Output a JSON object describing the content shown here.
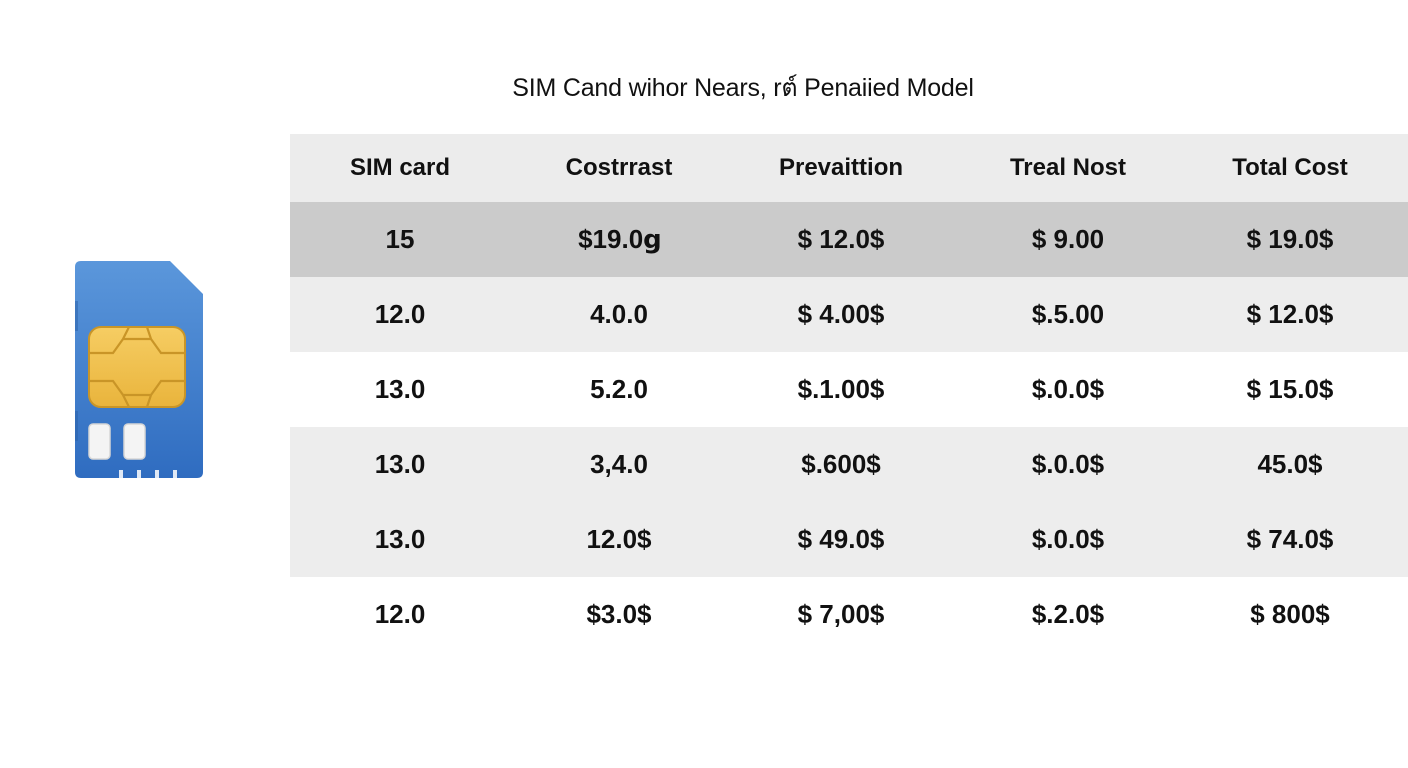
{
  "chart_data": {
    "type": "table",
    "title": "SIM Cand wihor Nears, rต์ Penaiied Model",
    "columns": [
      "SIM card",
      "Costrrast",
      "Prevaittion",
      "Treal Nost",
      "Total Cost"
    ],
    "rows": [
      [
        "15",
        "$19.0ց",
        "$ 12.0$",
        "$ 9.00",
        "$ 19.0$"
      ],
      [
        "12.0",
        "4.0.0",
        "$ 4.00$",
        "$.5.00",
        "$ 12.0$"
      ],
      [
        "13.0",
        "5.2.0",
        "$.1.00$",
        "$.0.0$",
        "$ 15.0$"
      ],
      [
        "13.0",
        "3,4.0",
        "$.600$",
        "$.0.0$",
        "45.0$"
      ],
      [
        "13.0",
        "12.0$",
        "$ 49.0$",
        "$.0.0$",
        "$ 74.0$"
      ],
      [
        "12.0",
        "$3.0$",
        "$ 7,00$",
        "$.2.0$",
        "$ 800$"
      ]
    ],
    "row_shading": [
      "#cbcbcb",
      "#ededed",
      "#ffffff",
      "#ededed",
      "#ededed",
      "#ffffff"
    ]
  },
  "colors": {
    "header_bg": "#ececec",
    "sim_blue": "#3a78c9",
    "sim_chip": "#f2c14e"
  },
  "icons": {
    "sim": "sim-card-icon"
  }
}
